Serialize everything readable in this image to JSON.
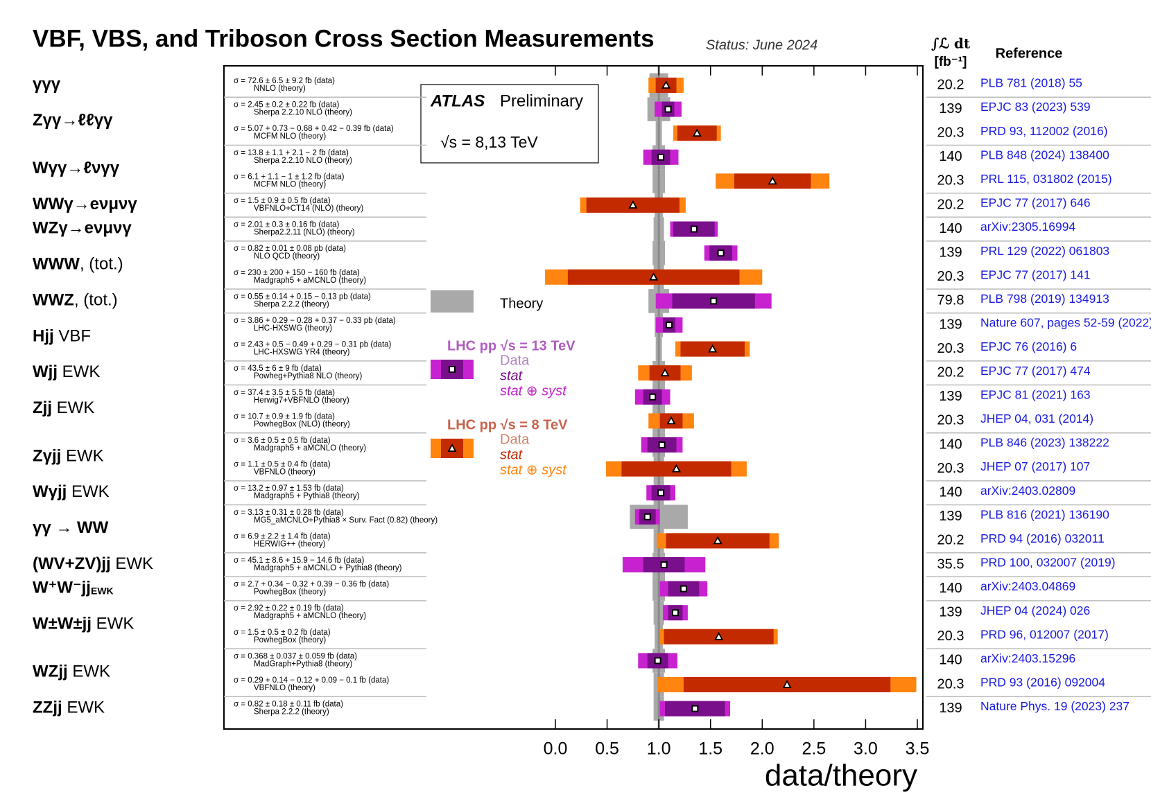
{
  "chart_data": {
    "type": "forest",
    "title": "VBF, VBS, and Triboson Cross Section Measurements",
    "status": "Status: June 2024",
    "lumi_header": "∫ℒ dt",
    "lumi_unit": "[fb⁻¹]",
    "ref_header": "Reference",
    "experiment": "ATLAS",
    "experiment_note": "Preliminary",
    "energy_label": "√s = 8,13 TeV",
    "x_label": "data/theory",
    "xlim": [
      0,
      3.5
    ],
    "xticks": [
      {
        "value": 0,
        "label": "0.0"
      },
      0.5,
      {
        "value": 1,
        "label": "1.0"
      },
      1.5,
      {
        "value": 2,
        "label": "2.0"
      },
      2.5,
      {
        "value": 3,
        "label": "3.0"
      },
      3.5
    ],
    "reference": 1,
    "theory_label": "Theory",
    "theory_color": "#a9a9a9",
    "legend": [
      {
        "energy": 13,
        "title": "LHC pp √s = 13 TeV",
        "data": "Data",
        "stat": "stat",
        "total": "stat ⊕ syst",
        "title_color": "#b05cc0",
        "data_color": "#b283c0",
        "stat_color": "#7a0f8c",
        "total_color": "#c822d0",
        "marker": "square"
      },
      {
        "energy": 8,
        "title": "LHC pp √s = 8 TeV",
        "data": "Data",
        "stat": "stat",
        "total": "stat ⊕ syst",
        "title_color": "#c8624a",
        "data_color": "#d0826a",
        "stat_color": "#c42a00",
        "total_color": "#ff8410",
        "marker": "triangle"
      }
    ],
    "groups": [
      {
        "label": "γγγ",
        "rows": [
          {
            "sigma": "σ = 72.6 ± 6.5 ± 9.2 fb (data)",
            "theory_name": "NNLO (theory)",
            "energy": 8,
            "ratio": 1.07,
            "stat": 0.1,
            "total": 0.17,
            "theory": 0.09,
            "lumi": 20.2,
            "ref": "PLB 781 (2018) 55"
          }
        ]
      },
      {
        "label": "Zγγ→ℓℓγγ",
        "rows": [
          {
            "sigma": "σ = 2.45 ± 0.2 ± 0.22 fb (data)",
            "theory_name": "Sherpa 2.2.10 NLO (theory)",
            "energy": 13,
            "ratio": 1.09,
            "stat": 0.06,
            "total": 0.13,
            "theory": 0.11,
            "lumi": 139,
            "ref": "EPJC 83 (2023) 539"
          },
          {
            "sigma": "σ = 5.07 + 0.73 − 0.68 + 0.42 − 0.39 fb (data)",
            "theory_name": "MCFM NLO (theory)",
            "energy": 8,
            "ratio": 1.37,
            "stat": 0.19,
            "total": 0.23,
            "theory": 0.03,
            "lumi": 20.3,
            "ref": "PRD 93, 112002 (2016)"
          }
        ]
      },
      {
        "label": "Wγγ→ℓνγγ",
        "rows": [
          {
            "sigma": "σ = 13.8 ± 1.1 + 2.1 − 2 fb (data)",
            "theory_name": "Sherpa 2.2.10 NLO (theory)",
            "energy": 13,
            "ratio": 1.02,
            "stat": 0.09,
            "total": 0.17,
            "theory": 0.06,
            "lumi": 140,
            "ref": "PLB 848 (2024) 138400"
          },
          {
            "sigma": "σ = 6.1 + 1.1 − 1 ± 1.2 fb (data)",
            "theory_name": "MCFM NLO (theory)",
            "energy": 8,
            "ratio": 2.1,
            "stat": 0.37,
            "total": 0.55,
            "theory": 0.06,
            "lumi": 20.3,
            "ref": "PRL 115, 031802 (2015)"
          }
        ]
      },
      {
        "label": "WWγ→eνμνγ",
        "rows": [
          {
            "sigma": "σ = 1.5 ± 0.9 ± 0.5 fb (data)",
            "theory_name": "VBFNLO+CT14 (NLO) (theory)",
            "energy": 8,
            "ratio": 0.75,
            "stat": 0.45,
            "total": 0.51,
            "theory": 0.04,
            "lumi": 20.2,
            "ref": "EPJC 77 (2017) 646"
          }
        ]
      },
      {
        "label": "WZγ→eνμνγ",
        "rows": [
          {
            "sigma": "σ = 2.01 ± 0.3 ± 0.16 fb (data)",
            "theory_name": "Sherpa2.2.11 (NLO) (theory)",
            "energy": 13,
            "ratio": 1.34,
            "stat": 0.2,
            "total": 0.23,
            "theory": 0.05,
            "lumi": 140,
            "ref": "arXiv:2305.16994"
          }
        ]
      },
      {
        "label": "WWW",
        "suffix": ", (tot.)",
        "rows": [
          {
            "sigma": "σ = 0.82 ± 0.01 ± 0.08 pb (data)",
            "theory_name": "NLO QCD (theory)",
            "energy": 13,
            "ratio": 1.6,
            "stat": 0.11,
            "total": 0.16,
            "theory": 0.06,
            "lumi": 139,
            "ref": "PRL 129 (2022) 061803"
          },
          {
            "sigma": "σ = 230 ± 200 + 150 − 160 fb (data)",
            "theory_name": "Madgraph5 + aMCNLO (theory)",
            "energy": 8,
            "ratio": 0.95,
            "stat": 0.83,
            "total": 1.05,
            "theory": 0.05,
            "lumi": 20.3,
            "ref": "EPJC 77 (2017) 141"
          }
        ]
      },
      {
        "label": "WWZ",
        "suffix": ", (tot.)",
        "rows": [
          {
            "sigma": "σ = 0.55 ± 0.14 + 0.15 − 0.13 pb (data)",
            "theory_name": "Sherpa 2.2.2 (theory)",
            "energy": 13,
            "ratio": 1.53,
            "stat": 0.4,
            "total": 0.56,
            "theory": 0.1,
            "lumi": 79.8,
            "ref": "PLB 798 (2019) 134913"
          }
        ]
      },
      {
        "label": "Hjj",
        "suffix": " VBF",
        "rows": [
          {
            "sigma": "σ = 3.86 + 0.29 − 0.28 + 0.37 − 0.33 pb (data)",
            "theory_name": "LHC-HXSWG (theory)",
            "energy": 13,
            "ratio": 1.1,
            "stat": 0.06,
            "total": 0.13,
            "theory": 0.04,
            "lumi": 139,
            "ref": "Nature 607, pages 52-59 (2022)"
          },
          {
            "sigma": "σ = 2.43 + 0.5 − 0.49 + 0.29 − 0.31 pb (data)",
            "theory_name": "LHC-HXSWG YR4 (theory)",
            "energy": 8,
            "ratio": 1.52,
            "stat": 0.31,
            "total": 0.36,
            "theory": 0.03,
            "lumi": 20.3,
            "ref": "EPJC 76 (2016) 6"
          }
        ]
      },
      {
        "label": "Wjj",
        "suffix": " EWK",
        "rows": [
          {
            "sigma": "σ = 43.5 ± 6 ± 9 fb (data)",
            "theory_name": "Powheg+Pythia8 NLO (theory)",
            "energy": 8,
            "ratio": 1.06,
            "stat": 0.15,
            "total": 0.26,
            "theory": 0.06,
            "lumi": 20.2,
            "ref": "EPJC 77 (2017) 474"
          }
        ]
      },
      {
        "label": "Zjj",
        "suffix": " EWK",
        "rows": [
          {
            "sigma": "σ = 37.4 ± 3.5 ± 5.5 fb (data)",
            "theory_name": "Herwig7+VBFNLO (theory)",
            "energy": 13,
            "ratio": 0.94,
            "stat": 0.09,
            "total": 0.17,
            "theory": 0.06,
            "lumi": 139,
            "ref": "EPJC 81 (2021) 163"
          },
          {
            "sigma": "σ = 10.7 ± 0.9 ± 1.9 fb (data)",
            "theory_name": "PowhegBox (NLO) (theory)",
            "energy": 8,
            "ratio": 1.12,
            "stat": 0.11,
            "total": 0.22,
            "theory": 0.06,
            "lumi": 20.3,
            "ref": "JHEP 04, 031 (2014)"
          }
        ]
      },
      {
        "label": "Zγjj",
        "suffix": " EWK",
        "rows": [
          {
            "sigma": "σ = 3.6 ± 0.5 ± 0.5 fb (data)",
            "theory_name": "Madgraph5 + aMCNLO (theory)",
            "energy": 13,
            "ratio": 1.03,
            "stat": 0.14,
            "total": 0.2,
            "theory": 0.06,
            "lumi": 140,
            "ref": "PLB 846 (2023) 138222"
          },
          {
            "sigma": "σ = 1.1 ± 0.5 ± 0.4 fb (data)",
            "theory_name": "VBFNLO (theory)",
            "energy": 8,
            "ratio": 1.17,
            "stat": 0.53,
            "total": 0.68,
            "theory": 0.05,
            "lumi": 20.3,
            "ref": "JHEP 07 (2017) 107"
          }
        ]
      },
      {
        "label": "Wγjj",
        "suffix": " EWK",
        "rows": [
          {
            "sigma": "σ = 13.2 ± 0.97 ± 1.53 fb (data)",
            "theory_name": "Madgraph5 + Pythia8 (theory)",
            "energy": 13,
            "ratio": 1.02,
            "stat": 0.09,
            "total": 0.14,
            "theory": 0.05,
            "lumi": 140,
            "ref": "arXiv:2403.02809"
          }
        ]
      },
      {
        "label": "γγ → WW",
        "rows": [
          {
            "sigma": "σ = 3.13 ± 0.31 ± 0.28 fb (data)",
            "theory_name": "MG5_aMCNLO+Pythia8 × Surv. Fact (0.82) (theory)",
            "energy": 13,
            "ratio": 0.89,
            "stat": 0.08,
            "total": 0.12,
            "theory": 0.28,
            "lumi": 139,
            "ref": "PLB 816 (2021) 136190"
          },
          {
            "sigma": "σ = 6.9 ± 2.2 ± 1.4 fb (data)",
            "theory_name": "HERWIG++ (theory)",
            "energy": 8,
            "ratio": 1.57,
            "stat": 0.5,
            "total": 0.59,
            "theory": 0.05,
            "lumi": 20.2,
            "ref": "PRD 94 (2016) 032011"
          }
        ]
      },
      {
        "label": "(WV+ZV)jj",
        "suffix": " EWK",
        "rows": [
          {
            "sigma": "σ = 45.1 ± 8.6 + 15.9 − 14.6 fb (data)",
            "theory_name": "Madgraph5 + aMCNLO + Pythia8 (theory)",
            "energy": 13,
            "ratio": 1.05,
            "stat": 0.2,
            "total": 0.4,
            "theory": 0.06,
            "lumi": 35.5,
            "ref": "PRD 100, 032007 (2019)"
          }
        ]
      },
      {
        "label": "W⁺W⁻jj",
        "sub": "EWK",
        "rows": [
          {
            "sigma": "σ = 2.7 + 0.34 − 0.32 + 0.39 − 0.36 fb (data)",
            "theory_name": "PowhegBox (theory)",
            "energy": 13,
            "ratio": 1.24,
            "stat": 0.15,
            "total": 0.23,
            "theory": 0.06,
            "lumi": 140,
            "ref": "arXiv:2403.04869"
          }
        ]
      },
      {
        "label": "W±W±jj",
        "suffix": " EWK",
        "rows": [
          {
            "sigma": "σ = 2.92 ± 0.22 ± 0.19 fb (data)",
            "theory_name": "Madgraph5 + aMCNLO (theory)",
            "energy": 13,
            "ratio": 1.16,
            "stat": 0.07,
            "total": 0.12,
            "theory": 0.05,
            "lumi": 139,
            "ref": "JHEP 04 (2024) 026"
          },
          {
            "sigma": "σ = 1.5 ± 0.5 ± 0.2 fb (data)",
            "theory_name": "PowhegBox (theory)",
            "energy": 8,
            "ratio": 1.58,
            "stat": 0.53,
            "total": 0.57,
            "theory": 0.04,
            "lumi": 20.3,
            "ref": "PRD 96, 012007 (2017)"
          }
        ]
      },
      {
        "label": "WZjj",
        "suffix": " EWK",
        "rows": [
          {
            "sigma": "σ = 0.368 ± 0.037 ± 0.059 fb (data)",
            "theory_name": "MadGraph+Pythia8 (theory)",
            "energy": 13,
            "ratio": 0.99,
            "stat": 0.1,
            "total": 0.19,
            "theory": 0.06,
            "lumi": 140,
            "ref": "arXiv:2403.15296"
          },
          {
            "sigma": "σ = 0.29 + 0.14 − 0.12 + 0.09 − 0.1 fb (data)",
            "theory_name": "VBFNLO (theory)",
            "energy": 8,
            "ratio": 2.24,
            "stat": 1.0,
            "total": 1.25,
            "theory": 0.05,
            "lumi": 20.3,
            "ref": "PRD 93 (2016) 092004"
          }
        ]
      },
      {
        "label": "ZZjj",
        "suffix": " EWK",
        "rows": [
          {
            "sigma": "σ = 0.82 ± 0.18 ± 0.11 fb (data)",
            "theory_name": "Sherpa 2.2.2 (theory)",
            "energy": 13,
            "ratio": 1.35,
            "stat": 0.29,
            "total": 0.34,
            "theory": 0.05,
            "lumi": 139,
            "ref": "Nature Phys. 19 (2023) 237"
          }
        ]
      }
    ]
  }
}
